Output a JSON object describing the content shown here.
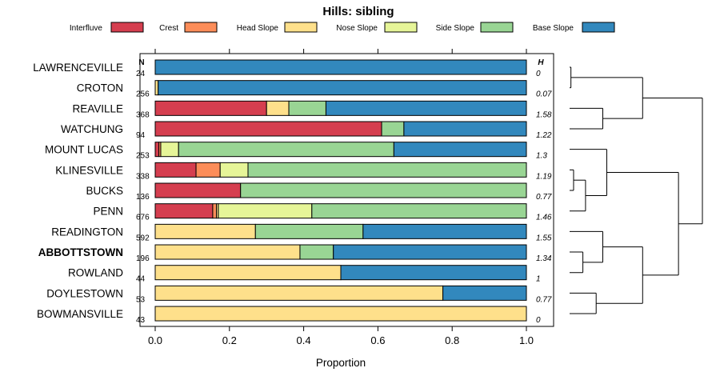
{
  "chart_data": {
    "type": "bar",
    "orientation": "horizontal",
    "stacked": true,
    "title": "Hills: sibling",
    "xlabel": "Proportion",
    "xlim": [
      0,
      1
    ],
    "x_ticks": [
      "0.0",
      "0.2",
      "0.4",
      "0.6",
      "0.8",
      "1.0"
    ],
    "n_header": "N",
    "h_header": "H",
    "highlight_category": "ABBOTTSTOWN",
    "legend": [
      {
        "name": "Interfluve",
        "color": "#d53e4f"
      },
      {
        "name": "Crest",
        "color": "#fc8d59"
      },
      {
        "name": "Head Slope",
        "color": "#fee08b"
      },
      {
        "name": "Nose Slope",
        "color": "#e6f598"
      },
      {
        "name": "Side Slope",
        "color": "#99d594"
      },
      {
        "name": "Base Slope",
        "color": "#3288bd"
      }
    ],
    "categories": [
      "LAWRENCEVILLE",
      "CROTON",
      "REAVILLE",
      "WATCHUNG",
      "MOUNT LUCAS",
      "KLINESVILLE",
      "BUCKS",
      "PENN",
      "READINGTON",
      "ABBOTTSTOWN",
      "ROWLAND",
      "DOYLESTOWN",
      "BOWMANSVILLE"
    ],
    "n": [
      "24",
      "256",
      "368",
      "94",
      "253",
      "338",
      "136",
      "676",
      "592",
      "196",
      "44",
      "53",
      "43"
    ],
    "h": [
      "0",
      "0.07",
      "1.58",
      "1.22",
      "1.3",
      "1.19",
      "0.77",
      "1.46",
      "1.55",
      "1.34",
      "1",
      "0.77",
      "0"
    ],
    "series": [
      {
        "name": "Interfluve",
        "values": [
          0,
          0,
          0.3,
          0.61,
          0.01,
          0.11,
          0.23,
          0.155,
          0,
          0,
          0,
          0,
          0
        ]
      },
      {
        "name": "Crest",
        "values": [
          0,
          0,
          0,
          0,
          0.005,
          0.065,
          0,
          0.01,
          0,
          0,
          0,
          0,
          0
        ]
      },
      {
        "name": "Head Slope",
        "values": [
          0,
          0.008,
          0.06,
          0,
          0,
          0,
          0,
          0.005,
          0.27,
          0.39,
          0.5,
          0.775,
          1.0
        ]
      },
      {
        "name": "Nose Slope",
        "values": [
          0,
          0,
          0,
          0,
          0.048,
          0.075,
          0,
          0.252,
          0,
          0,
          0,
          0,
          0
        ]
      },
      {
        "name": "Side Slope",
        "values": [
          0,
          0,
          0.1,
          0.06,
          0.58,
          0.75,
          0.77,
          0.578,
          0.29,
          0.09,
          0,
          0,
          0
        ]
      },
      {
        "name": "Base Slope",
        "values": [
          1.0,
          0.992,
          0.54,
          0.33,
          0.357,
          0,
          0,
          0,
          0.44,
          0.52,
          0.5,
          0.225,
          0
        ]
      }
    ],
    "dendrogram": {
      "leaf_order": [
        "LAWRENCEVILLE",
        "CROTON",
        "REAVILLE",
        "WATCHUNG",
        "MOUNT LUCAS",
        "KLINESVILLE",
        "BUCKS",
        "PENN",
        "READINGTON",
        "ABBOTTSTOWN",
        "ROWLAND",
        "DOYLESTOWN",
        "BOWMANSVILLE"
      ],
      "merges": [
        {
          "a": "L:0",
          "b": "L:1",
          "height": 0.01
        },
        {
          "a": "L:2",
          "b": "L:3",
          "height": 0.25
        },
        {
          "a": "M:0",
          "b": "M:1",
          "height": 0.55
        },
        {
          "a": "L:5",
          "b": "L:6",
          "height": 0.03
        },
        {
          "a": "M:3",
          "b": "L:7",
          "height": 0.12
        },
        {
          "a": "L:4",
          "b": "M:4",
          "height": 0.28
        },
        {
          "a": "L:9",
          "b": "L:10",
          "height": 0.1
        },
        {
          "a": "L:8",
          "b": "M:6",
          "height": 0.25
        },
        {
          "a": "L:11",
          "b": "L:12",
          "height": 0.2
        },
        {
          "a": "M:7",
          "b": "M:8",
          "height": 0.55
        },
        {
          "a": "M:5",
          "b": "M:9",
          "height": 0.82
        },
        {
          "a": "M:2",
          "b": "M:10",
          "height": 1.0
        }
      ]
    }
  }
}
